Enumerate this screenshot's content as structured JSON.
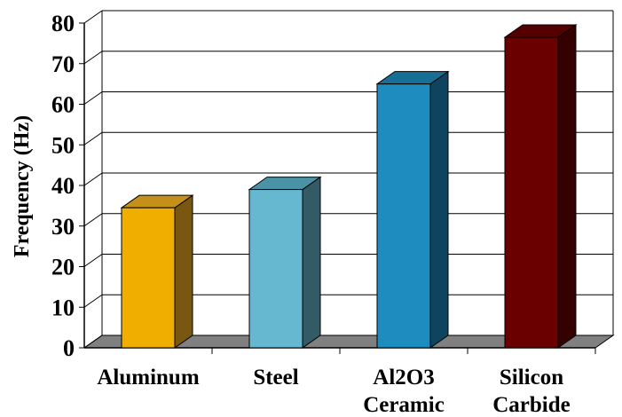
{
  "chart_data": {
    "type": "bar",
    "title": "",
    "xlabel": "",
    "ylabel": "Frequency (Hz)",
    "ylim": [
      0,
      80
    ],
    "yticks": [
      0,
      10,
      20,
      30,
      40,
      50,
      60,
      70,
      80
    ],
    "grid": true,
    "legend": "none",
    "three_d": true,
    "categories": [
      [
        "Aluminum"
      ],
      [
        "Steel"
      ],
      [
        "Al2O3",
        "Ceramic"
      ],
      [
        "Silicon",
        "Carbide"
      ]
    ],
    "values": [
      34.5,
      39,
      65,
      76.5
    ],
    "colors": {
      "front": [
        "#F0AE00",
        "#66B8D0",
        "#1E8CBF",
        "#6A0000"
      ],
      "top": [
        "#C4901A",
        "#4A93A6",
        "#176F96",
        "#540000"
      ],
      "side": [
        "#7A5710",
        "#335B66",
        "#0F4460",
        "#350000"
      ],
      "floor": "#808080",
      "grid": "#000000"
    }
  }
}
